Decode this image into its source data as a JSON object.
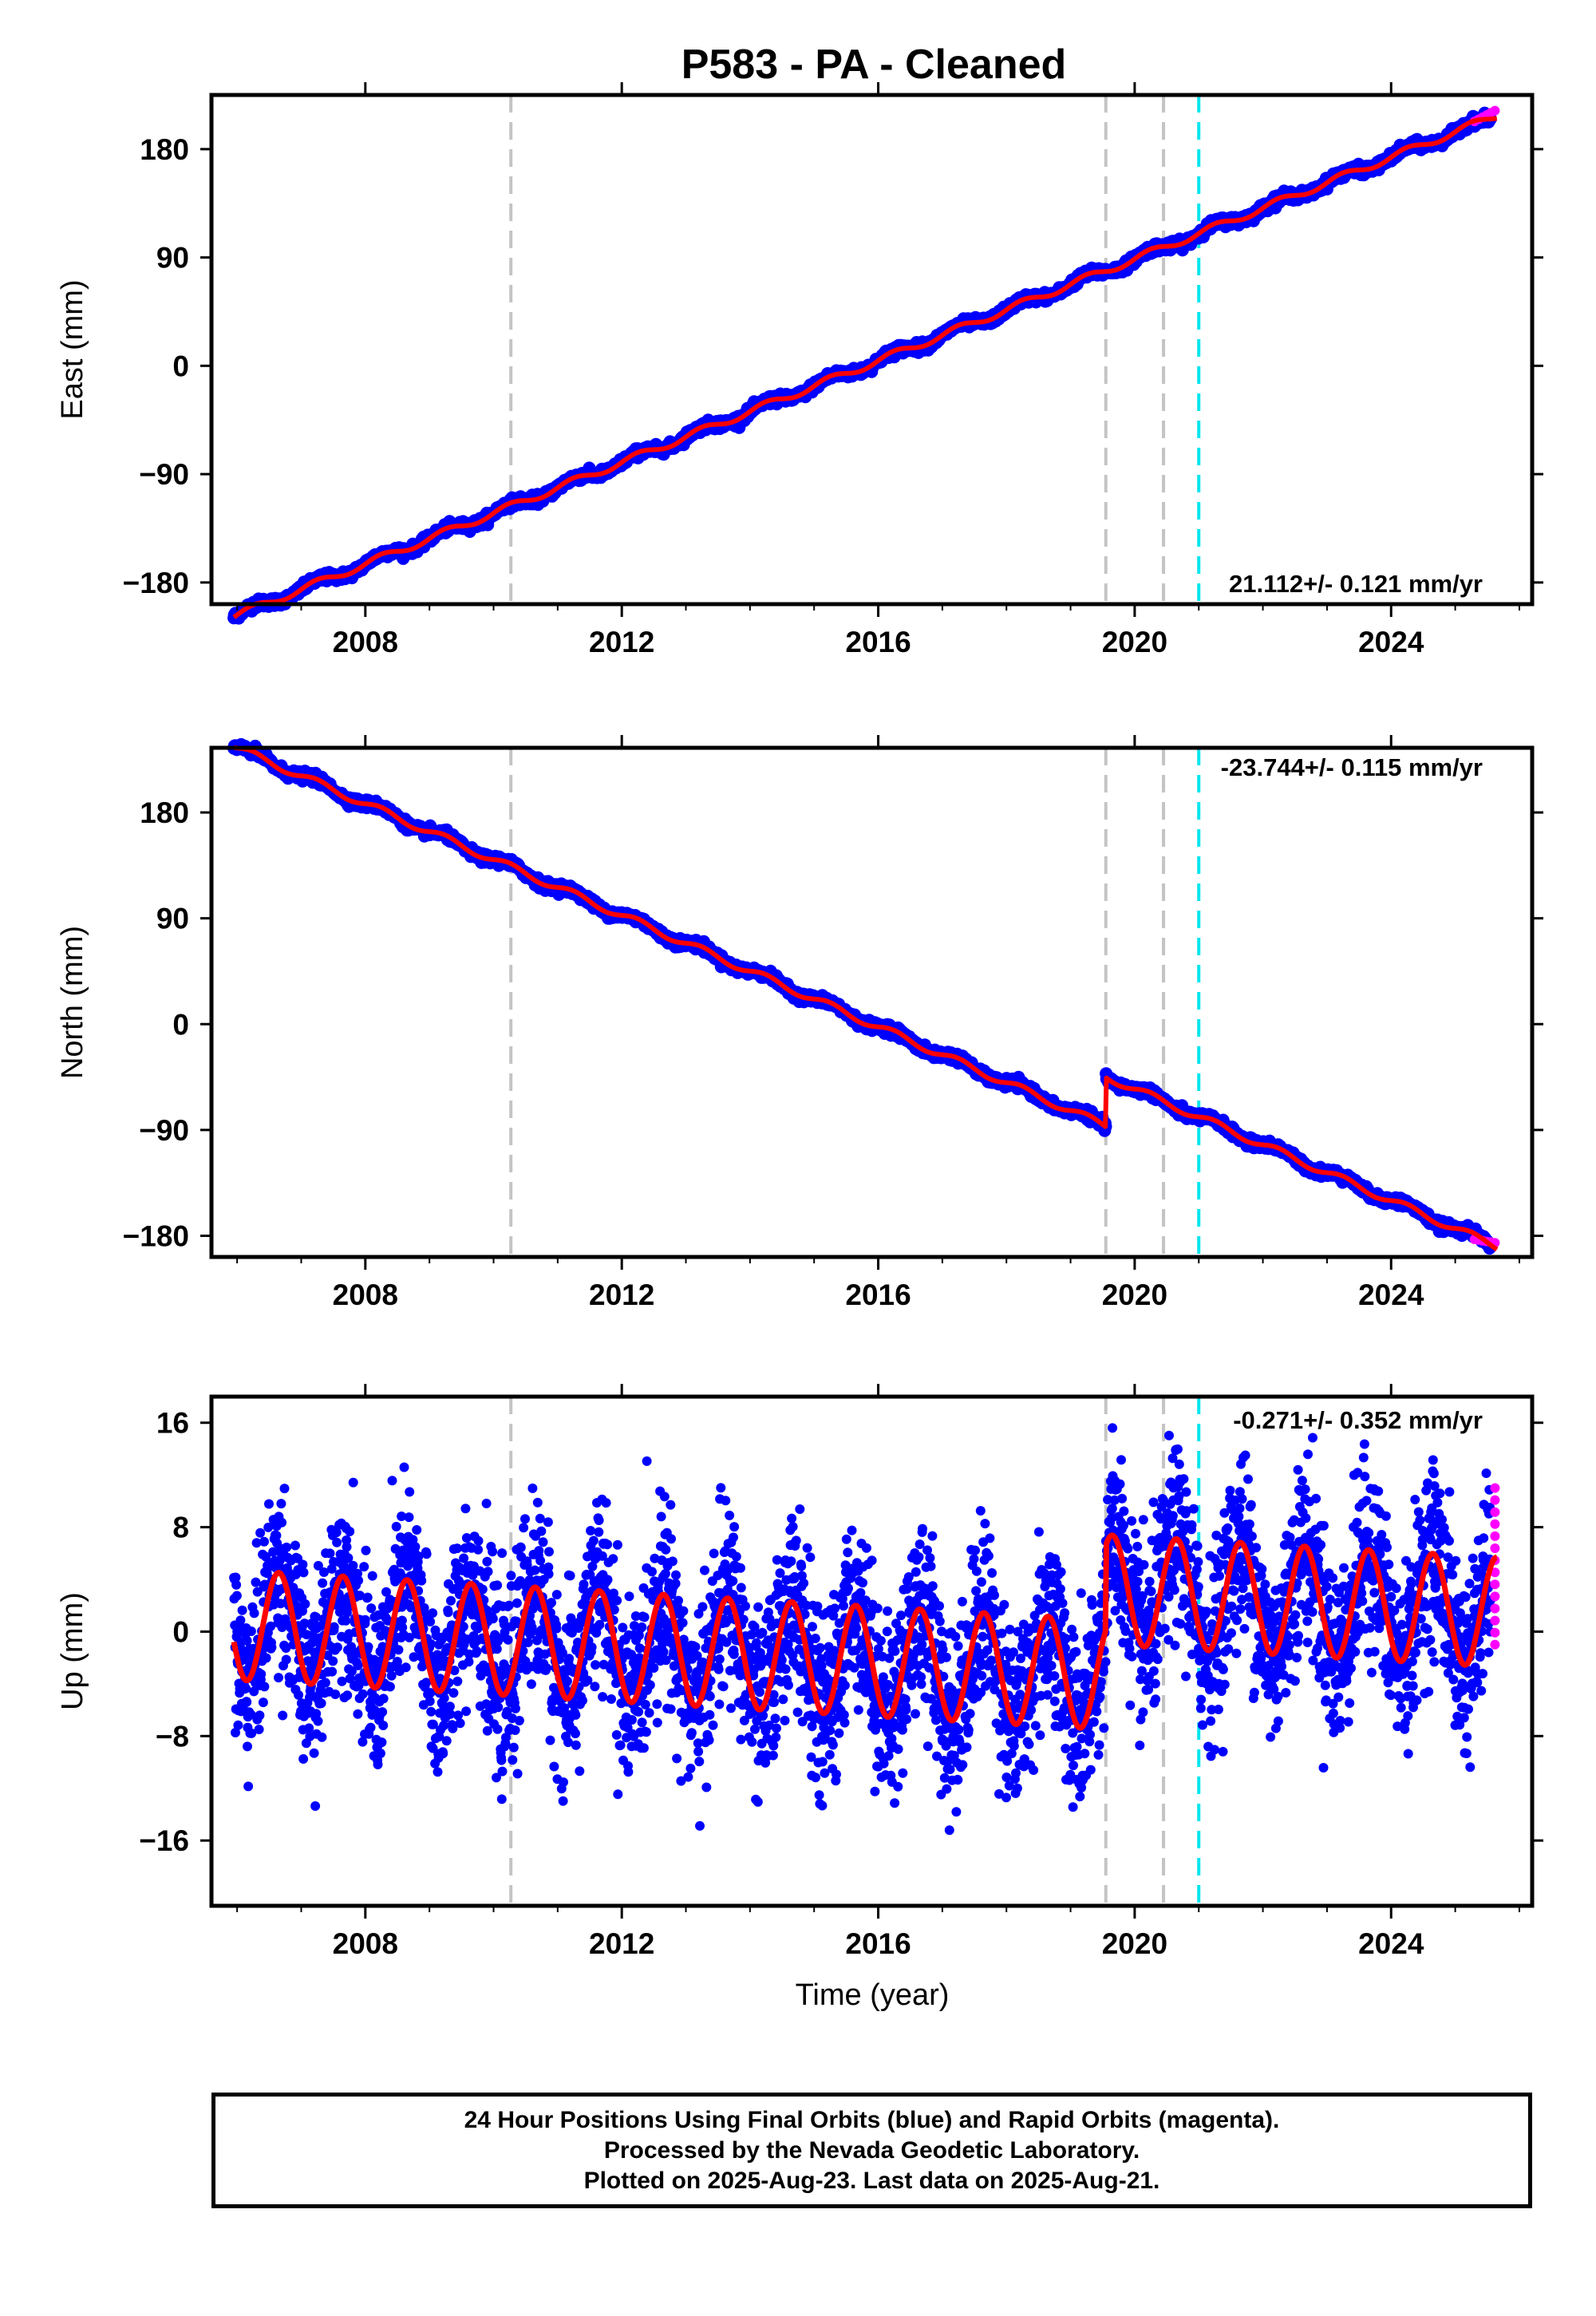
{
  "chart_data": [
    {
      "type": "scatter",
      "panel": "east",
      "title": "P583  - PA - Cleaned",
      "xlabel": "",
      "ylabel": "East (mm)",
      "xlim": [
        2005.6,
        2026.2
      ],
      "ylim": [
        -198,
        225
      ],
      "yticks": [
        -180,
        -90,
        0,
        90,
        180
      ],
      "xticks": [
        2008,
        2012,
        2016,
        2020,
        2024
      ],
      "rate_text": "21.112+/- 0.121 mm/yr",
      "rate_position": "bottom-right",
      "series": [
        {
          "name": "",
          "color": "#0000ff",
          "trend": {
            "start": [
              2005.95,
              -208
            ],
            "end": [
              2025.6,
              207
            ],
            "offsets": []
          }
        }
      ],
      "model": {
        "color": "#ff0000",
        "seasonal_amplitude": 3
      },
      "rapid": {
        "color": "#ff00ff",
        "x": [
          2025.3,
          2025.62
        ],
        "y": [
          203,
          212
        ]
      },
      "event_lines": {
        "gray": [
          2010.27,
          2019.55,
          2020.45
        ],
        "cyan": [
          2021.0
        ]
      }
    },
    {
      "type": "scatter",
      "panel": "north",
      "title": "",
      "xlabel": "",
      "ylabel": "North (mm)",
      "xlim": [
        2005.6,
        2026.2
      ],
      "ylim": [
        -198,
        235
      ],
      "yticks": [
        -180,
        -90,
        0,
        90,
        180
      ],
      "xticks": [
        2008,
        2012,
        2016,
        2020,
        2024
      ],
      "rate_text": "-23.744+/- 0.115 mm/yr",
      "rate_position": "top-right",
      "series": [
        {
          "name": "",
          "color": "#0000ff",
          "trend": {
            "start": [
              2005.95,
              236
            ],
            "end": [
              2025.6,
              -188
            ],
            "offsets": [
              [
                2019.55,
                42
              ]
            ]
          }
        }
      ],
      "model": {
        "color": "#ff0000",
        "seasonal_amplitude": 3
      },
      "rapid": {
        "color": "#ff00ff",
        "x": [
          2025.3,
          2025.62
        ],
        "y": [
          -183,
          -186
        ]
      },
      "event_lines": {
        "gray": [
          2010.27,
          2019.55,
          2020.45
        ],
        "cyan": [
          2021.0
        ]
      }
    },
    {
      "type": "scatter",
      "panel": "up",
      "title": "",
      "xlabel": "Time (year)",
      "ylabel": "Up (mm)",
      "xlim": [
        2005.6,
        2026.2
      ],
      "ylim": [
        -21,
        18
      ],
      "yticks": [
        -16,
        -8,
        0,
        8,
        16
      ],
      "xticks": [
        2008,
        2012,
        2016,
        2020,
        2024
      ],
      "rate_text": "-0.271+/- 0.352 mm/yr",
      "rate_position": "top-right",
      "series": [
        {
          "name": "",
          "color": "#0000ff",
          "seasonal_amplitude": 4.2,
          "scatter_sd": 3.4,
          "offset_after_2019.55": 6.5
        }
      ],
      "model": {
        "color": "#ff0000",
        "seasonal_amplitude": 4.2
      },
      "rapid": {
        "color": "#ff00ff",
        "x": [
          2025.55,
          2025.62
        ],
        "y": [
          -1,
          11
        ]
      },
      "event_lines": {
        "gray": [
          2010.27,
          2019.55,
          2020.45
        ],
        "cyan": [
          2021.0
        ]
      }
    }
  ],
  "footer": {
    "line1": "24 Hour Positions Using Final Orbits (blue) and Rapid Orbits (magenta).",
    "line2": "Processed by the Nevada Geodetic Laboratory.",
    "line3": "Plotted on 2025-Aug-23. Last data on 2025-Aug-21."
  }
}
